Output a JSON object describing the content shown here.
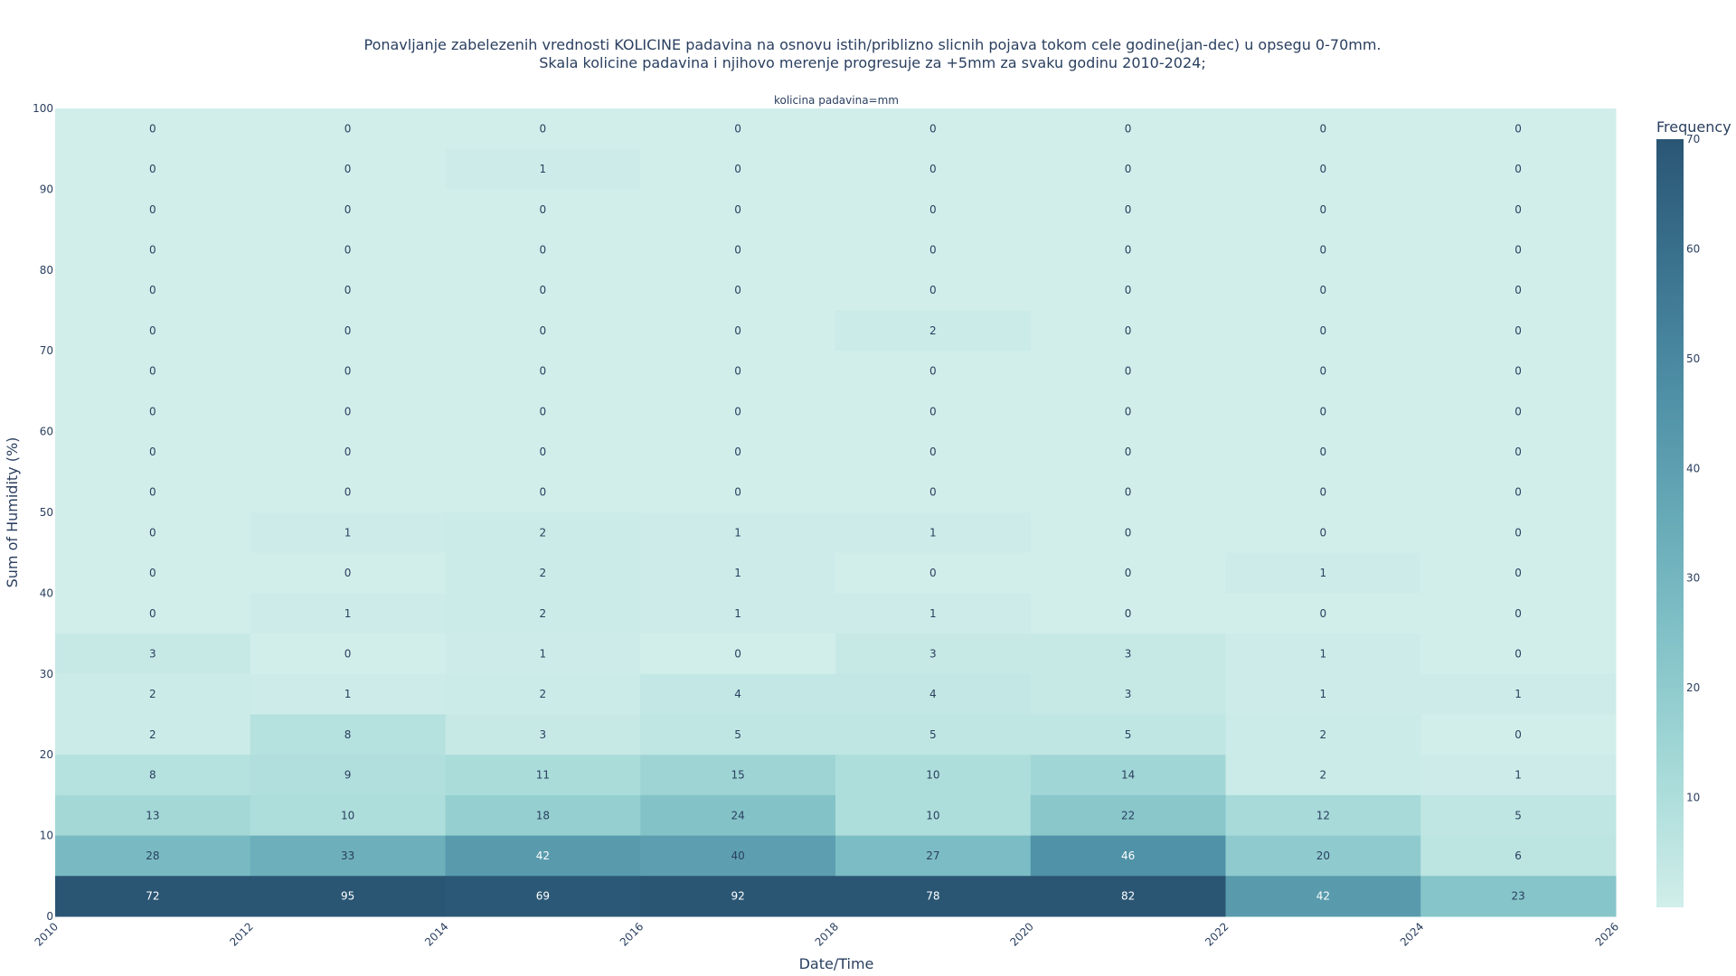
{
  "chart_data": {
    "type": "heatmap",
    "title_lines": [
      "Ponavljanje zabelezenih vrednosti KOLICINE padavina na osnovu istih/priblizno slicnih pojava tokom cele godine(jan-dec) u opsegu 0-70mm.",
      "Skala kolicine padavina i njihovo merenje progresuje za +5mm za svaku godinu 2010-2024;"
    ],
    "facet_label": "kolicina padavina=mm",
    "xlabel": "Date/Time",
    "ylabel": "Sum of Humidity (%)",
    "xlim": [
      2010,
      2026
    ],
    "ylim": [
      0,
      100
    ],
    "x_ticks": [
      "2010",
      "2012",
      "2014",
      "2016",
      "2018",
      "2020",
      "2022",
      "2024",
      "2026"
    ],
    "y_ticks": [
      "0",
      "10",
      "20",
      "30",
      "40",
      "50",
      "60",
      "70",
      "80",
      "90",
      "100"
    ],
    "x_bins": [
      [
        2010,
        2012
      ],
      [
        2012,
        2014
      ],
      [
        2014,
        2016
      ],
      [
        2016,
        2018
      ],
      [
        2018,
        2020
      ],
      [
        2020,
        2022
      ],
      [
        2022,
        2024
      ],
      [
        2024,
        2026
      ]
    ],
    "y_bins_from_top": [
      [
        95,
        100
      ],
      [
        90,
        95
      ],
      [
        85,
        90
      ],
      [
        80,
        85
      ],
      [
        75,
        80
      ],
      [
        70,
        75
      ],
      [
        65,
        70
      ],
      [
        60,
        65
      ],
      [
        55,
        60
      ],
      [
        50,
        55
      ],
      [
        45,
        50
      ],
      [
        40,
        45
      ],
      [
        35,
        40
      ],
      [
        30,
        35
      ],
      [
        25,
        30
      ],
      [
        20,
        25
      ],
      [
        15,
        20
      ],
      [
        10,
        15
      ],
      [
        5,
        10
      ],
      [
        0,
        5
      ]
    ],
    "z_rows_from_top": [
      [
        0,
        0,
        0,
        0,
        0,
        0,
        0,
        0
      ],
      [
        0,
        0,
        1,
        0,
        0,
        0,
        0,
        0
      ],
      [
        0,
        0,
        0,
        0,
        0,
        0,
        0,
        0
      ],
      [
        0,
        0,
        0,
        0,
        0,
        0,
        0,
        0
      ],
      [
        0,
        0,
        0,
        0,
        0,
        0,
        0,
        0
      ],
      [
        0,
        0,
        0,
        0,
        2,
        0,
        0,
        0
      ],
      [
        0,
        0,
        0,
        0,
        0,
        0,
        0,
        0
      ],
      [
        0,
        0,
        0,
        0,
        0,
        0,
        0,
        0
      ],
      [
        0,
        0,
        0,
        0,
        0,
        0,
        0,
        0
      ],
      [
        0,
        0,
        0,
        0,
        0,
        0,
        0,
        0
      ],
      [
        0,
        1,
        2,
        1,
        1,
        0,
        0,
        0
      ],
      [
        0,
        0,
        2,
        1,
        0,
        0,
        1,
        0
      ],
      [
        0,
        1,
        2,
        1,
        1,
        0,
        0,
        0
      ],
      [
        3,
        0,
        1,
        0,
        3,
        3,
        1,
        0
      ],
      [
        2,
        1,
        2,
        4,
        4,
        3,
        1,
        1
      ],
      [
        2,
        8,
        3,
        5,
        5,
        5,
        2,
        0
      ],
      [
        8,
        9,
        11,
        15,
        10,
        14,
        2,
        1
      ],
      [
        13,
        10,
        18,
        24,
        10,
        22,
        12,
        5
      ],
      [
        28,
        33,
        42,
        40,
        27,
        46,
        20,
        6
      ],
      [
        72,
        95,
        69,
        92,
        78,
        82,
        42,
        23
      ]
    ],
    "colorbar": {
      "title": "Frequency",
      "ticks": [
        "10",
        "20",
        "30",
        "40",
        "50",
        "60",
        "70"
      ],
      "range": [
        0,
        70
      ],
      "colorscale": [
        "#d1eeea",
        "#a8dbd9",
        "#85c4c9",
        "#68abb8",
        "#4f90a6",
        "#3b738f",
        "#2a5674"
      ]
    },
    "grid": false
  }
}
